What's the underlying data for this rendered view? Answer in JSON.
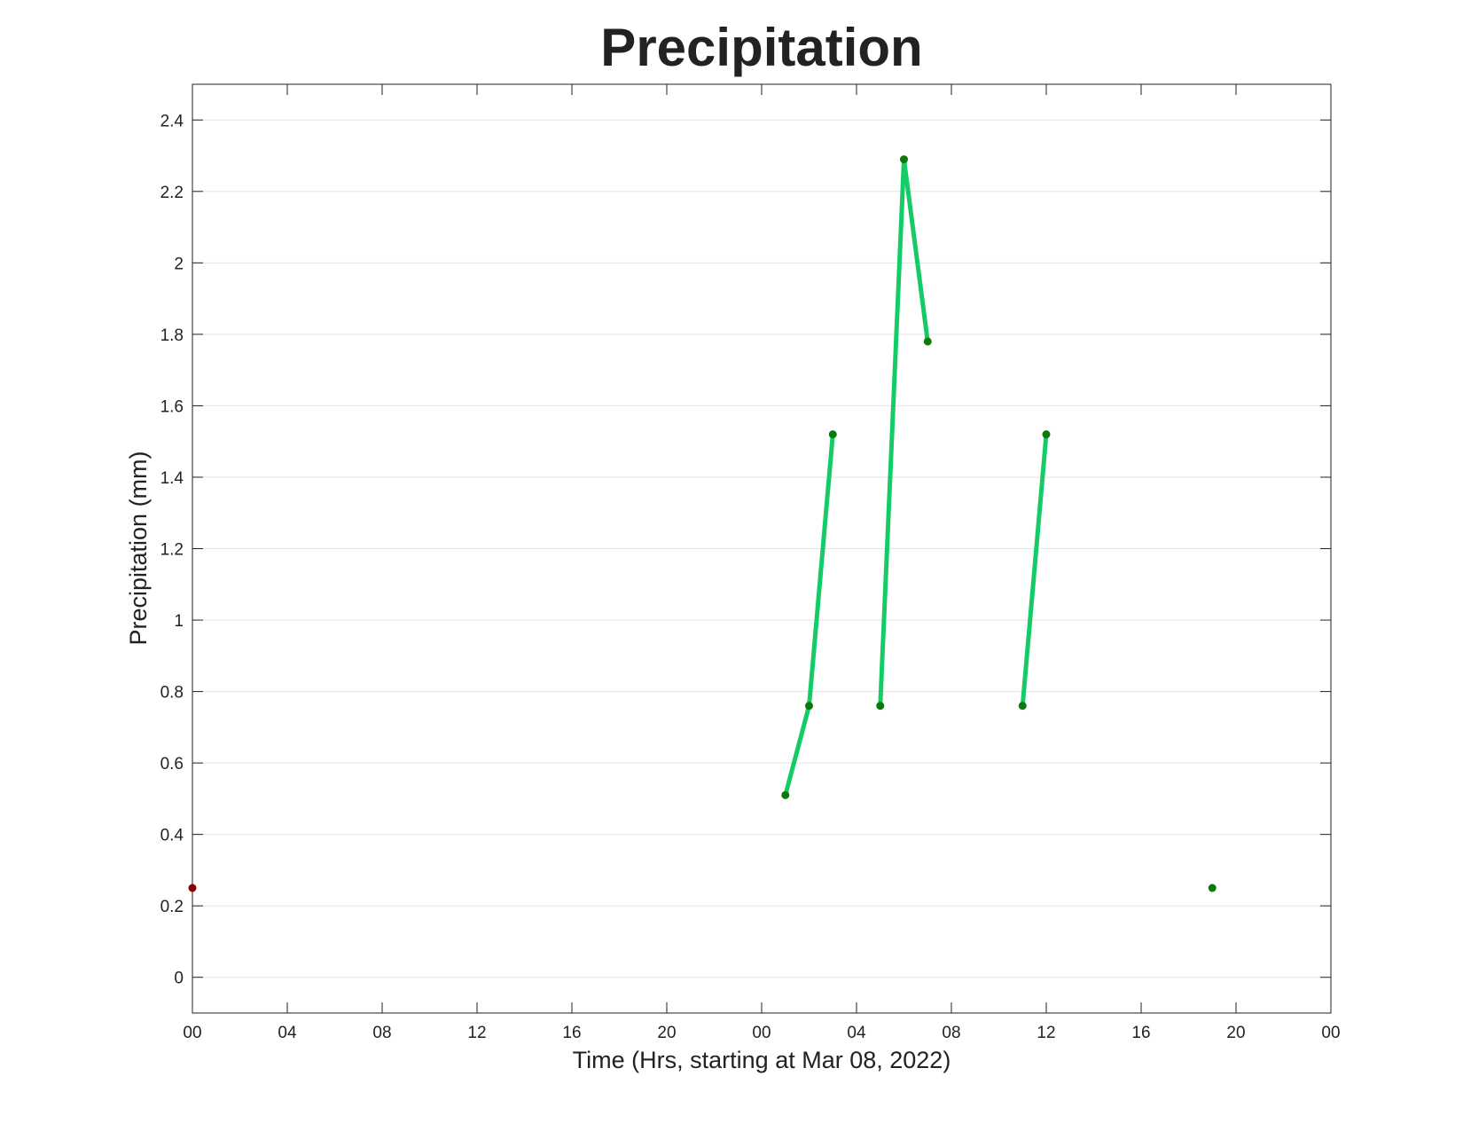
{
  "chart_data": {
    "type": "line",
    "title": "Precipitation",
    "xlabel": "Time (Hrs, starting at Mar 08, 2022)",
    "ylabel": "Precipitation (mm)",
    "series": [
      {
        "color": "#8b0000",
        "marker_color": "#8b0000",
        "x": [
          0
        ],
        "values": [
          0.25
        ]
      },
      {
        "color": "#14cc66",
        "marker_color": "#0a7a0a",
        "x": [
          25,
          26,
          27,
          28,
          29,
          30,
          31,
          32,
          35,
          36,
          37,
          43
        ],
        "values": [
          0.51,
          0.76,
          1.52,
          null,
          0.76,
          2.29,
          1.78,
          null,
          0.76,
          1.52,
          null,
          0.25
        ]
      }
    ],
    "xlim": [
      0,
      48
    ],
    "xticks": [
      {
        "value": 0,
        "label": "00"
      },
      {
        "value": 4,
        "label": "04"
      },
      {
        "value": 8,
        "label": "08"
      },
      {
        "value": 12,
        "label": "12"
      },
      {
        "value": 16,
        "label": "16"
      },
      {
        "value": 20,
        "label": "20"
      },
      {
        "value": 24,
        "label": "00"
      },
      {
        "value": 28,
        "label": "04"
      },
      {
        "value": 32,
        "label": "08"
      },
      {
        "value": 36,
        "label": "12"
      },
      {
        "value": 40,
        "label": "16"
      },
      {
        "value": 44,
        "label": "20"
      },
      {
        "value": 48,
        "label": "00"
      }
    ],
    "ylim": [
      -0.1,
      2.5
    ],
    "yticks": [
      0,
      0.2,
      0.4,
      0.6,
      0.8,
      1,
      1.2,
      1.4,
      1.6,
      1.8,
      2,
      2.2,
      2.4
    ],
    "grid": true
  }
}
